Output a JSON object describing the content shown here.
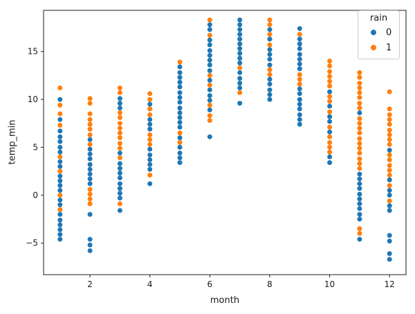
{
  "chart_data": {
    "type": "scatter",
    "title": "",
    "xlabel": "month",
    "ylabel": "temp_min",
    "xlim": [
      0.45,
      12.55
    ],
    "ylim": [
      -8.3,
      19.3
    ],
    "xticks": [
      2,
      4,
      6,
      8,
      10,
      12
    ],
    "yticks": [
      -5,
      0,
      5,
      10,
      15
    ],
    "grid": false,
    "marker_radius": 3.5,
    "axis_color": "#1a1a1a",
    "legend": {
      "title": "rain",
      "position": "upper right",
      "entries": [
        {
          "label": "0",
          "color": "#1f77b4"
        },
        {
          "label": "1",
          "color": "#ff7f0e"
        }
      ]
    },
    "series": [
      {
        "name": "0",
        "color": "#1f77b4",
        "points": [
          [
            1,
            10.0
          ],
          [
            1,
            7.9
          ],
          [
            1,
            6.7
          ],
          [
            1,
            6.1
          ],
          [
            1,
            5.6
          ],
          [
            1,
            5.0
          ],
          [
            1,
            4.5
          ],
          [
            1,
            3.5
          ],
          [
            1,
            3.0
          ],
          [
            1,
            2.0
          ],
          [
            1,
            1.5
          ],
          [
            1,
            1.0
          ],
          [
            1,
            0.5
          ],
          [
            1,
            -0.5
          ],
          [
            1,
            -1.0
          ],
          [
            1,
            -2.0
          ],
          [
            1,
            -2.6
          ],
          [
            1,
            -3.1
          ],
          [
            1,
            -3.6
          ],
          [
            1,
            -4.1
          ],
          [
            1,
            -4.6
          ],
          [
            2,
            5.8
          ],
          [
            2,
            4.8
          ],
          [
            2,
            4.3
          ],
          [
            2,
            3.8
          ],
          [
            2,
            3.2
          ],
          [
            2,
            2.7
          ],
          [
            2,
            2.2
          ],
          [
            2,
            1.7
          ],
          [
            2,
            1.2
          ],
          [
            2,
            -2.0
          ],
          [
            2,
            -4.6
          ],
          [
            2,
            -5.2
          ],
          [
            2,
            -5.8
          ],
          [
            3,
            10.1
          ],
          [
            3,
            9.6
          ],
          [
            3,
            9.1
          ],
          [
            3,
            4.4
          ],
          [
            3,
            3.3
          ],
          [
            3,
            2.8
          ],
          [
            3,
            2.3
          ],
          [
            3,
            1.8
          ],
          [
            3,
            1.2
          ],
          [
            3,
            0.7
          ],
          [
            3,
            0.2
          ],
          [
            3,
            -0.3
          ],
          [
            3,
            -1.6
          ],
          [
            4,
            9.5
          ],
          [
            4,
            7.9
          ],
          [
            4,
            7.4
          ],
          [
            4,
            6.9
          ],
          [
            4,
            4.8
          ],
          [
            4,
            4.2
          ],
          [
            4,
            3.7
          ],
          [
            4,
            3.2
          ],
          [
            4,
            2.7
          ],
          [
            4,
            1.2
          ],
          [
            5,
            13.4
          ],
          [
            5,
            12.8
          ],
          [
            5,
            12.3
          ],
          [
            5,
            11.8
          ],
          [
            5,
            11.3
          ],
          [
            5,
            10.7
          ],
          [
            5,
            10.2
          ],
          [
            5,
            9.7
          ],
          [
            5,
            9.1
          ],
          [
            5,
            8.6
          ],
          [
            5,
            8.1
          ],
          [
            5,
            7.6
          ],
          [
            5,
            7.1
          ],
          [
            5,
            6.0
          ],
          [
            5,
            5.0
          ],
          [
            5,
            4.4
          ],
          [
            5,
            3.9
          ],
          [
            5,
            3.4
          ],
          [
            6,
            17.8
          ],
          [
            6,
            17.3
          ],
          [
            6,
            16.2
          ],
          [
            6,
            15.7
          ],
          [
            6,
            15.1
          ],
          [
            6,
            14.6
          ],
          [
            6,
            14.1
          ],
          [
            6,
            13.6
          ],
          [
            6,
            13.0
          ],
          [
            6,
            12.0
          ],
          [
            6,
            11.0
          ],
          [
            6,
            10.4
          ],
          [
            6,
            9.9
          ],
          [
            6,
            8.9
          ],
          [
            6,
            6.1
          ],
          [
            7,
            18.3
          ],
          [
            7,
            17.8
          ],
          [
            7,
            17.3
          ],
          [
            7,
            16.8
          ],
          [
            7,
            16.3
          ],
          [
            7,
            15.8
          ],
          [
            7,
            15.3
          ],
          [
            7,
            14.8
          ],
          [
            7,
            14.3
          ],
          [
            7,
            13.8
          ],
          [
            7,
            12.8
          ],
          [
            7,
            12.2
          ],
          [
            7,
            11.7
          ],
          [
            7,
            11.2
          ],
          [
            7,
            9.6
          ],
          [
            8,
            17.3
          ],
          [
            8,
            16.3
          ],
          [
            8,
            15.2
          ],
          [
            8,
            14.7
          ],
          [
            8,
            14.2
          ],
          [
            8,
            13.6
          ],
          [
            8,
            12.1
          ],
          [
            8,
            11.6
          ],
          [
            8,
            11.0
          ],
          [
            8,
            10.5
          ],
          [
            8,
            10.0
          ],
          [
            9,
            17.4
          ],
          [
            9,
            16.3
          ],
          [
            9,
            15.8
          ],
          [
            9,
            15.3
          ],
          [
            9,
            14.7
          ],
          [
            9,
            14.2
          ],
          [
            9,
            13.7
          ],
          [
            9,
            13.2
          ],
          [
            9,
            11.1
          ],
          [
            9,
            10.6
          ],
          [
            9,
            10.0
          ],
          [
            9,
            9.5
          ],
          [
            9,
            9.0
          ],
          [
            9,
            8.4
          ],
          [
            9,
            7.9
          ],
          [
            9,
            7.4
          ],
          [
            10,
            10.8
          ],
          [
            10,
            9.3
          ],
          [
            10,
            8.2
          ],
          [
            10,
            7.7
          ],
          [
            10,
            6.6
          ],
          [
            10,
            4.0
          ],
          [
            10,
            3.4
          ],
          [
            11,
            8.6
          ],
          [
            11,
            2.2
          ],
          [
            11,
            1.7
          ],
          [
            11,
            1.2
          ],
          [
            11,
            0.7
          ],
          [
            11,
            0.1
          ],
          [
            11,
            -0.4
          ],
          [
            11,
            -0.9
          ],
          [
            11,
            -1.4
          ],
          [
            11,
            -2.0
          ],
          [
            11,
            -2.5
          ],
          [
            11,
            -4.6
          ],
          [
            12,
            4.7
          ],
          [
            12,
            1.6
          ],
          [
            12,
            0.5
          ],
          [
            12,
            0.0
          ],
          [
            12,
            -1.1
          ],
          [
            12,
            -1.6
          ],
          [
            12,
            -4.2
          ],
          [
            12,
            -4.8
          ],
          [
            12,
            -6.1
          ],
          [
            12,
            -6.7
          ]
        ]
      },
      {
        "name": "1",
        "color": "#ff7f0e",
        "points": [
          [
            1,
            11.2
          ],
          [
            1,
            9.4
          ],
          [
            1,
            8.5
          ],
          [
            1,
            7.3
          ],
          [
            1,
            4.0
          ],
          [
            1,
            2.5
          ],
          [
            1,
            0.0
          ],
          [
            1,
            -1.5
          ],
          [
            2,
            10.1
          ],
          [
            2,
            9.6
          ],
          [
            2,
            8.5
          ],
          [
            2,
            7.9
          ],
          [
            2,
            7.4
          ],
          [
            2,
            6.9
          ],
          [
            2,
            6.3
          ],
          [
            2,
            5.3
          ],
          [
            2,
            0.6
          ],
          [
            2,
            0.1
          ],
          [
            2,
            -0.4
          ],
          [
            2,
            -0.9
          ],
          [
            3,
            11.2
          ],
          [
            3,
            10.7
          ],
          [
            3,
            8.6
          ],
          [
            3,
            8.1
          ],
          [
            3,
            7.5
          ],
          [
            3,
            7.0
          ],
          [
            3,
            6.5
          ],
          [
            3,
            6.0
          ],
          [
            3,
            5.4
          ],
          [
            3,
            4.9
          ],
          [
            3,
            3.9
          ],
          [
            3,
            -0.9
          ],
          [
            4,
            10.6
          ],
          [
            4,
            10.0
          ],
          [
            4,
            9.0
          ],
          [
            4,
            8.4
          ],
          [
            4,
            6.3
          ],
          [
            4,
            5.8
          ],
          [
            4,
            5.3
          ],
          [
            4,
            2.1
          ],
          [
            5,
            13.9
          ],
          [
            5,
            6.5
          ],
          [
            5,
            5.5
          ],
          [
            6,
            18.3
          ],
          [
            6,
            16.7
          ],
          [
            6,
            12.5
          ],
          [
            6,
            11.5
          ],
          [
            6,
            9.4
          ],
          [
            6,
            8.3
          ],
          [
            6,
            7.8
          ],
          [
            7,
            13.3
          ],
          [
            7,
            10.7
          ],
          [
            8,
            18.3
          ],
          [
            8,
            17.8
          ],
          [
            8,
            16.8
          ],
          [
            8,
            15.7
          ],
          [
            8,
            13.1
          ],
          [
            8,
            12.6
          ],
          [
            9,
            16.8
          ],
          [
            9,
            12.6
          ],
          [
            9,
            12.1
          ],
          [
            9,
            11.6
          ],
          [
            10,
            14.0
          ],
          [
            10,
            13.5
          ],
          [
            10,
            12.9
          ],
          [
            10,
            12.4
          ],
          [
            10,
            11.9
          ],
          [
            10,
            11.4
          ],
          [
            10,
            10.3
          ],
          [
            10,
            9.8
          ],
          [
            10,
            8.7
          ],
          [
            10,
            7.1
          ],
          [
            10,
            6.1
          ],
          [
            10,
            5.5
          ],
          [
            10,
            5.0
          ],
          [
            10,
            4.5
          ],
          [
            11,
            12.8
          ],
          [
            11,
            12.3
          ],
          [
            11,
            11.7
          ],
          [
            11,
            11.2
          ],
          [
            11,
            10.7
          ],
          [
            11,
            10.2
          ],
          [
            11,
            9.6
          ],
          [
            11,
            9.1
          ],
          [
            11,
            8.0
          ],
          [
            11,
            7.5
          ],
          [
            11,
            7.0
          ],
          [
            11,
            6.5
          ],
          [
            11,
            5.9
          ],
          [
            11,
            5.4
          ],
          [
            11,
            4.9
          ],
          [
            11,
            4.4
          ],
          [
            11,
            3.8
          ],
          [
            11,
            3.3
          ],
          [
            11,
            2.8
          ],
          [
            11,
            -3.5
          ],
          [
            11,
            -4.0
          ],
          [
            12,
            10.8
          ],
          [
            12,
            9.0
          ],
          [
            12,
            8.4
          ],
          [
            12,
            7.9
          ],
          [
            12,
            7.4
          ],
          [
            12,
            6.8
          ],
          [
            12,
            6.3
          ],
          [
            12,
            5.8
          ],
          [
            12,
            5.3
          ],
          [
            12,
            4.2
          ],
          [
            12,
            3.7
          ],
          [
            12,
            3.1
          ],
          [
            12,
            2.6
          ],
          [
            12,
            2.1
          ],
          [
            12,
            1.0
          ],
          [
            12,
            -0.6
          ]
        ]
      }
    ]
  }
}
